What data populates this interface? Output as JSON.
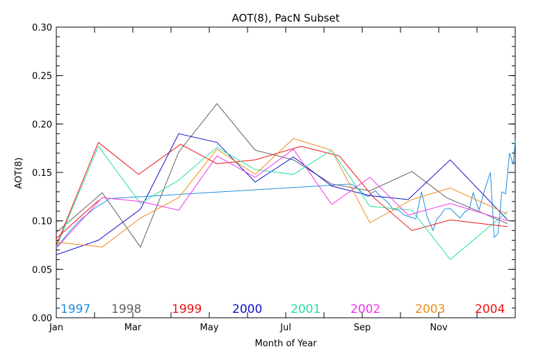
{
  "chart_data": {
    "type": "line",
    "title": "AOT(8), PacN Subset",
    "xlabel": "Month of Year",
    "ylabel": "AOT(8)",
    "xlim": [
      1,
      13
    ],
    "ylim": [
      0,
      0.3
    ],
    "grid": false,
    "legend_position": "bottom",
    "x_ticks": [
      {
        "x": 1,
        "label": "Jan"
      },
      {
        "x": 3,
        "label": "Mar"
      },
      {
        "x": 5,
        "label": "May"
      },
      {
        "x": 7,
        "label": "Jul"
      },
      {
        "x": 9,
        "label": "Sep"
      },
      {
        "x": 11,
        "label": "Nov"
      }
    ],
    "y_ticks": [
      "0.00",
      "0.05",
      "0.10",
      "0.15",
      "0.20",
      "0.25",
      "0.30"
    ],
    "series": [
      {
        "name": "1997",
        "color": "#1e8ee0",
        "x": [
          1,
          1.1,
          1.3,
          1.6,
          2.0,
          2.4,
          8.7,
          8.8,
          8.95,
          9.05,
          9.15,
          9.25,
          9.35,
          9.45,
          9.55,
          9.7,
          9.8,
          9.95,
          10.1,
          10.25,
          10.4,
          10.55,
          10.7,
          10.85,
          10.95,
          11.05,
          11.15,
          11.3,
          11.45,
          11.55,
          11.7,
          11.8,
          11.9,
          12.05,
          12.2,
          12.35,
          12.45,
          12.55,
          12.65,
          12.75,
          12.85,
          12.95,
          13.0
        ],
        "y": [
          0.073,
          0.077,
          0.087,
          0.1,
          0.113,
          0.123,
          0.138,
          0.136,
          0.131,
          0.127,
          0.125,
          0.129,
          0.131,
          0.126,
          0.123,
          0.118,
          0.112,
          0.111,
          0.106,
          0.104,
          0.102,
          0.13,
          0.104,
          0.09,
          0.102,
          0.106,
          0.112,
          0.113,
          0.107,
          0.103,
          0.11,
          0.112,
          0.129,
          0.111,
          0.132,
          0.15,
          0.083,
          0.087,
          0.13,
          0.128,
          0.17,
          0.158,
          0.183
        ]
      },
      {
        "name": "1998",
        "color": "#606060",
        "x": [
          1.0,
          2.2,
          3.2,
          4.2,
          5.2,
          6.2,
          7.2,
          8.2,
          9.2,
          10.3,
          11.2,
          12.8
        ],
        "y": [
          0.088,
          0.129,
          0.073,
          0.171,
          0.221,
          0.173,
          0.163,
          0.138,
          0.131,
          0.151,
          0.124,
          0.097
        ]
      },
      {
        "name": "1999",
        "color": "#ee1111",
        "x": [
          1.0,
          2.1,
          3.15,
          4.25,
          5.2,
          6.2,
          7.4,
          8.4,
          9.3,
          10.3,
          11.3,
          12.8
        ],
        "y": [
          0.075,
          0.181,
          0.148,
          0.179,
          0.159,
          0.163,
          0.177,
          0.167,
          0.124,
          0.09,
          0.101,
          0.094
        ]
      },
      {
        "name": "2000",
        "color": "#1010c8",
        "x": [
          1.0,
          2.1,
          3.2,
          4.2,
          5.2,
          6.2,
          7.2,
          8.2,
          9.2,
          10.2,
          11.3,
          12.8
        ],
        "y": [
          0.065,
          0.08,
          0.112,
          0.19,
          0.181,
          0.14,
          0.166,
          0.136,
          0.126,
          0.122,
          0.163,
          0.101
        ]
      },
      {
        "name": "2001",
        "color": "#22dda0",
        "x": [
          1.0,
          2.1,
          3.2,
          4.2,
          5.2,
          6.2,
          7.2,
          8.2,
          9.2,
          10.3,
          11.3,
          12.8
        ],
        "y": [
          0.073,
          0.177,
          0.118,
          0.142,
          0.176,
          0.153,
          0.148,
          0.173,
          0.115,
          0.111,
          0.06,
          0.11
        ]
      },
      {
        "name": "2002",
        "color": "#ee33ee",
        "x": [
          1.0,
          2.2,
          3.2,
          4.2,
          5.2,
          6.2,
          7.2,
          8.2,
          9.2,
          10.2,
          11.3,
          12.8
        ],
        "y": [
          0.072,
          0.124,
          0.12,
          0.111,
          0.167,
          0.145,
          0.174,
          0.117,
          0.145,
          0.106,
          0.118,
          0.1
        ]
      },
      {
        "name": "2003",
        "color": "#ee8a1a",
        "x": [
          1.0,
          2.2,
          3.2,
          4.2,
          5.2,
          6.2,
          7.2,
          8.2,
          9.2,
          10.3,
          11.3,
          12.8
        ],
        "y": [
          0.078,
          0.073,
          0.103,
          0.124,
          0.174,
          0.148,
          0.185,
          0.173,
          0.098,
          0.122,
          0.134,
          0.107
        ]
      },
      {
        "name": "2004",
        "color": "#ee1111",
        "x": [
          1.0,
          2.1
        ],
        "y": [
          0.082,
          0.121
        ]
      }
    ]
  }
}
